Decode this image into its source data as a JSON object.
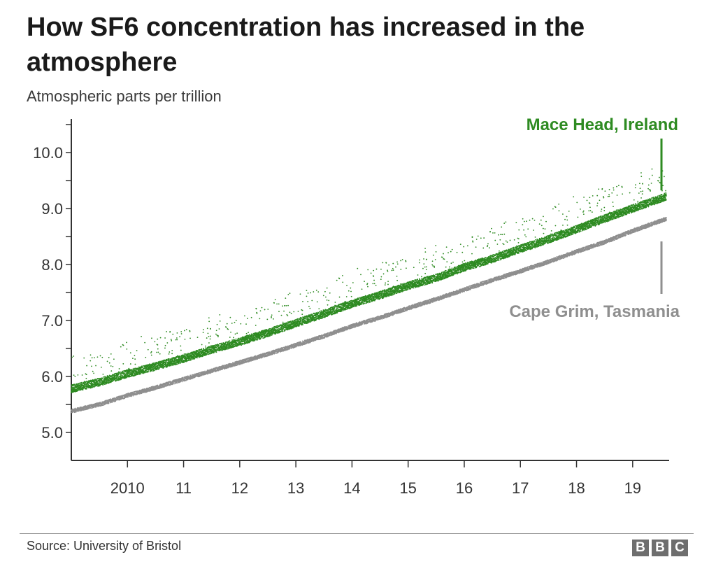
{
  "chart_data": {
    "type": "scatter",
    "title": "How SF6 concentration has increased in the atmosphere",
    "subtitle": "Atmospheric parts per trillion",
    "xlabel": "",
    "ylabel": "",
    "xlim": [
      2009.0,
      2019.65
    ],
    "ylim": [
      4.5,
      10.6
    ],
    "y_ticks": [
      5.0,
      6.0,
      7.0,
      8.0,
      9.0,
      10.0
    ],
    "y_tick_labels": [
      "5.0",
      "6.0",
      "7.0",
      "8.0",
      "9.0",
      "10.0"
    ],
    "x_ticks": [
      2010,
      2011,
      2012,
      2013,
      2014,
      2015,
      2016,
      2017,
      2018,
      2019
    ],
    "x_tick_labels": [
      "2010",
      "11",
      "12",
      "13",
      "14",
      "15",
      "16",
      "17",
      "18",
      "19"
    ],
    "grid": false,
    "legend": "direct labels at right end of series",
    "series": [
      {
        "name": "Mace Head, Ireland",
        "color": "#2e8b22",
        "x": [
          2009.0,
          2009.5,
          2010.0,
          2010.5,
          2011.0,
          2011.5,
          2012.0,
          2012.5,
          2013.0,
          2013.5,
          2014.0,
          2014.5,
          2015.0,
          2015.5,
          2016.0,
          2016.5,
          2017.0,
          2017.5,
          2018.0,
          2018.5,
          2019.0,
          2019.5
        ],
        "y": [
          5.78,
          5.9,
          6.05,
          6.18,
          6.32,
          6.48,
          6.62,
          6.78,
          6.95,
          7.12,
          7.3,
          7.45,
          7.62,
          7.76,
          7.95,
          8.1,
          8.28,
          8.45,
          8.63,
          8.82,
          9.0,
          9.18
        ]
      },
      {
        "name": "Cape Grim, Tasmania",
        "color": "#8f8f8f",
        "x": [
          2009.0,
          2009.5,
          2010.0,
          2010.5,
          2011.0,
          2011.5,
          2012.0,
          2012.5,
          2013.0,
          2013.5,
          2014.0,
          2014.5,
          2015.0,
          2015.5,
          2016.0,
          2016.5,
          2017.0,
          2017.5,
          2018.0,
          2018.5,
          2019.0,
          2019.5
        ],
        "y": [
          5.38,
          5.5,
          5.66,
          5.8,
          5.95,
          6.1,
          6.25,
          6.4,
          6.56,
          6.72,
          6.9,
          7.05,
          7.22,
          7.38,
          7.55,
          7.72,
          7.88,
          8.05,
          8.23,
          8.4,
          8.6,
          8.78
        ]
      }
    ]
  },
  "source": "Source: University of Bristol",
  "logo": {
    "letters": [
      "B",
      "B",
      "C"
    ],
    "color": "#6e6e6e"
  }
}
